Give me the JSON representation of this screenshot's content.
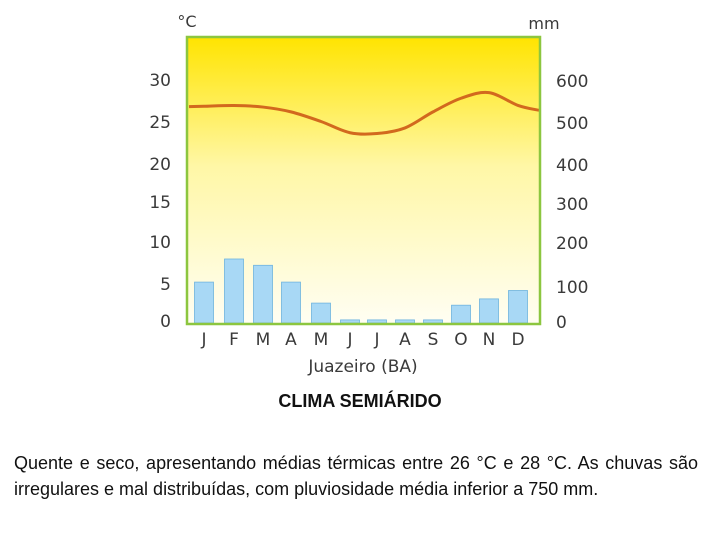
{
  "chart_data": {
    "type": "bar+line",
    "title": "",
    "station": "Juazeiro (BA)",
    "y_left_unit": "°C",
    "y_right_unit": "mm",
    "y_left_ticks": [
      "30",
      "25",
      "20",
      "15",
      "10",
      "5",
      "0"
    ],
    "y_right_ticks": [
      "600",
      "500",
      "400",
      "300",
      "200",
      "100",
      "0"
    ],
    "categories": [
      "J",
      "F",
      "M",
      "A",
      "M",
      "J",
      "J",
      "A",
      "S",
      "O",
      "N",
      "D"
    ],
    "precipitation_mm": [
      95,
      150,
      135,
      95,
      45,
      5,
      5,
      5,
      5,
      40,
      55,
      75
    ],
    "temperature_c": [
      26.9,
      27.0,
      26.8,
      26.2,
      25.0,
      23.6,
      23.5,
      24.2,
      26.2,
      27.9,
      28.6,
      27.0
    ],
    "colors": {
      "bars": "#a8d8f5",
      "bar_stroke": "#6fb4de",
      "line": "#d2691e",
      "frame": "#8cc63f",
      "bg_top": "#ffe400",
      "bg_bottom": "#fffef3"
    }
  },
  "caption": {
    "title": "CLIMA SEMIÁRIDO",
    "text": "Quente e seco, apresentando médias térmicas entre 26 °C e 28 °C. As chuvas são irregulares e mal distribuídas, com pluviosidade média inferior a 750 mm."
  }
}
